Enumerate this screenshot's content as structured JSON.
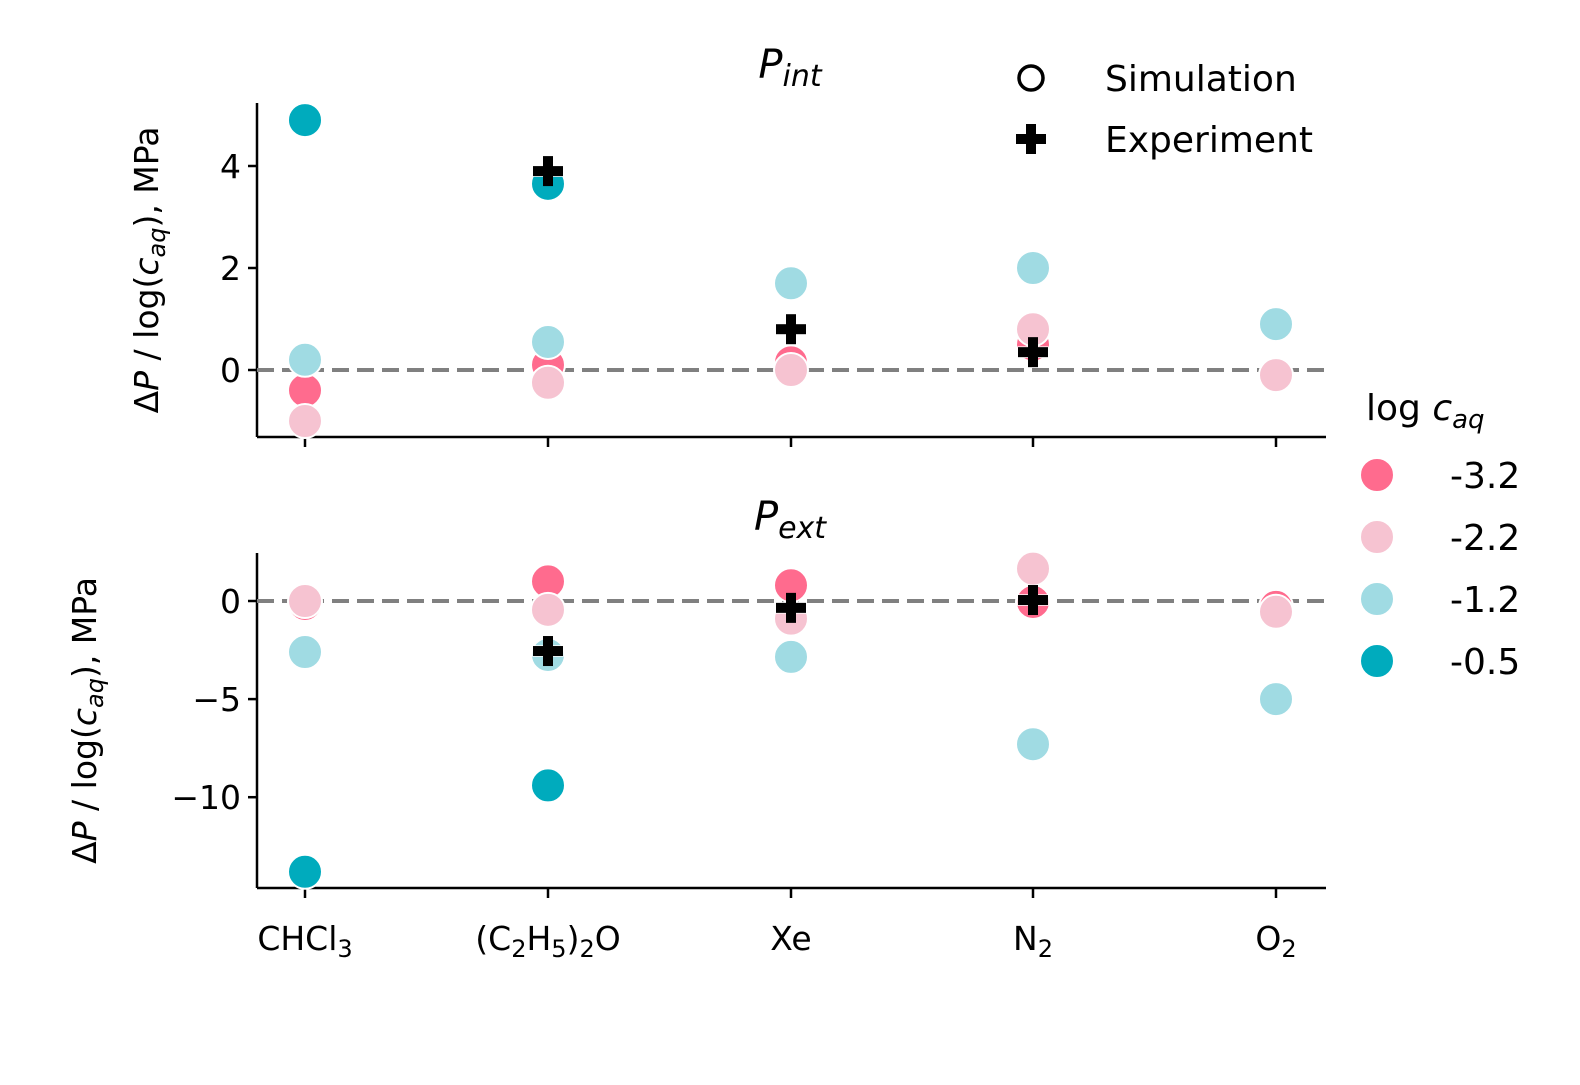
{
  "colors": {
    "-3.2": "#ff6b8e",
    "-2.2": "#f6c3d1",
    "-1.2": "#a0dbe3",
    "-0.5": "#00abbd",
    "zero_line": "#808080",
    "marker_edge": "#ffffff",
    "experiment": "#000000"
  },
  "chart_data": [
    {
      "type": "scatter",
      "title": "P_int",
      "title_main": "P",
      "title_sub": "int",
      "xlabel": "",
      "ylabel": "ΔP / log(c_aq), MPa",
      "categories": [
        "CHCl3",
        "(C2H5)2O",
        "Xe",
        "N2",
        "O2"
      ],
      "ylim": [
        -1.3,
        5.3
      ],
      "yticks": [
        "0",
        "2",
        "4"
      ],
      "ytick_values": [
        0,
        2,
        4
      ],
      "reference_line": 0,
      "grid": false,
      "series": [
        {
          "name": "-3.2",
          "marker": "circle",
          "values": [
            -0.4,
            0.1,
            0.15,
            0.5,
            null
          ]
        },
        {
          "name": "-2.2",
          "marker": "circle",
          "values": [
            -1.0,
            -0.25,
            0.0,
            0.8,
            -0.1
          ]
        },
        {
          "name": "-1.2",
          "marker": "circle",
          "values": [
            0.2,
            0.55,
            1.7,
            2.0,
            0.9
          ]
        },
        {
          "name": "-0.5",
          "marker": "circle",
          "values": [
            4.9,
            3.65,
            null,
            null,
            null
          ]
        },
        {
          "name": "Experiment",
          "marker": "plus",
          "values": [
            null,
            3.9,
            0.8,
            0.35,
            null
          ]
        }
      ]
    },
    {
      "type": "scatter",
      "title": "P_ext",
      "title_main": "P",
      "title_sub": "ext",
      "xlabel": "",
      "ylabel": "ΔP / log(c_aq), MPa",
      "categories": [
        "CHCl3",
        "(C2H5)2O",
        "Xe",
        "N2",
        "O2"
      ],
      "ylim": [
        -14.6,
        2.5
      ],
      "yticks": [
        "0",
        "−5",
        "−10"
      ],
      "ytick_values": [
        0,
        -5,
        -10
      ],
      "reference_line": 0,
      "grid": false,
      "series": [
        {
          "name": "-3.2",
          "marker": "circle",
          "values": [
            -0.15,
            1.0,
            0.8,
            -0.05,
            -0.3
          ]
        },
        {
          "name": "-2.2",
          "marker": "circle",
          "values": [
            0.0,
            -0.45,
            -0.9,
            1.65,
            -0.55
          ]
        },
        {
          "name": "-1.2",
          "marker": "circle",
          "values": [
            -2.6,
            -2.75,
            -2.85,
            -7.3,
            -5.0
          ]
        },
        {
          "name": "-0.5",
          "marker": "circle",
          "values": [
            -13.8,
            -9.4,
            null,
            null,
            null
          ]
        },
        {
          "name": "Experiment",
          "marker": "plus",
          "values": [
            null,
            -2.55,
            -0.35,
            0.05,
            null
          ]
        }
      ]
    }
  ],
  "xtick_labels": [
    {
      "parts": [
        [
          "CHCl",
          false
        ],
        [
          "3",
          true
        ]
      ]
    },
    {
      "parts": [
        [
          "(C",
          false
        ],
        [
          "2",
          true
        ],
        [
          "H",
          false
        ],
        [
          "5",
          true
        ],
        [
          ")",
          false
        ],
        [
          "2",
          true
        ],
        [
          "O",
          false
        ]
      ]
    },
    {
      "parts": [
        [
          "Xe",
          false
        ]
      ]
    },
    {
      "parts": [
        [
          "N",
          false
        ],
        [
          "2",
          true
        ]
      ]
    },
    {
      "parts": [
        [
          "O",
          false
        ],
        [
          "2",
          true
        ]
      ]
    }
  ],
  "ylabel_parts": {
    "delta": "Δ",
    "p": "P",
    "mid": " / log(",
    "c": "c",
    "aq": "aq",
    "end": "), MPa"
  },
  "marker_legend": {
    "items": [
      {
        "label": "Simulation",
        "marker": "circle"
      },
      {
        "label": "Experiment",
        "marker": "plus"
      }
    ]
  },
  "color_legend": {
    "title_main": "log ",
    "title_c": "c",
    "title_sub": "aq",
    "items": [
      {
        "label": "-3.2"
      },
      {
        "label": "-2.2"
      },
      {
        "label": "-1.2"
      },
      {
        "label": "-0.5"
      }
    ]
  }
}
